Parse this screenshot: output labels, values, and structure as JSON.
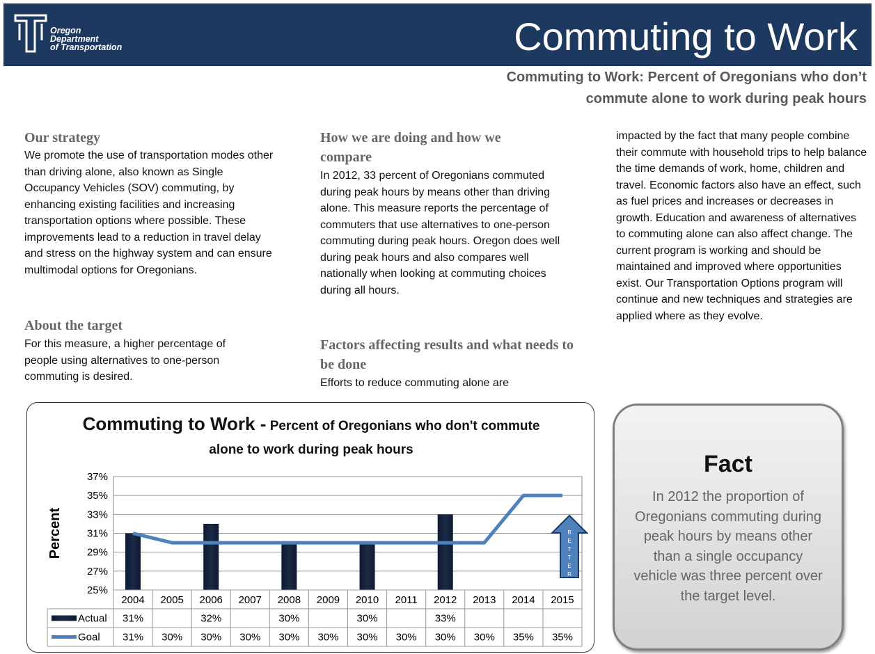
{
  "header": {
    "logo_lines": [
      "Oregon",
      "Department",
      "of Transportation"
    ],
    "title": "Commuting to Work",
    "subtitle": "Commuting to Work: Percent of Oregonians who don’t commute alone to work during peak hours"
  },
  "strategy": {
    "heading": "Our strategy",
    "text": "We promote the use of transportation modes other than driving alone, also known as Single Occupancy Vehicles (SOV) commuting, by enhancing existing facilities and increasing transportation options where possible. These improvements lead to a reduction in travel delay and stress on the highway system and can ensure multimodal options for Oregonians."
  },
  "target": {
    "heading": "About the target",
    "text": "For this measure, a higher percentage of people using alternatives to one-person commuting is desired."
  },
  "doing": {
    "heading": "How we are doing and how we compare",
    "text": "In 2012, 33 percent of Oregonians commuted during peak hours by means other than driving alone. This measure reports the percentage of commuters that use alternatives to one-person commuting during peak hours. Oregon does well during peak hours and also compares well nationally when looking at commuting choices during all hours."
  },
  "factors": {
    "heading": "Factors affecting results and what needs to be done",
    "text": [
      "Efforts to reduce commuting alone are",
      "impacted by the fact that many people combine their commute with household trips to help balance the time demands of work, home, children and travel. Economic factors also have an effect, such as fuel prices and increases or decreases in growth. Education and awareness of alternatives to commuting alone can also affect change. The current program is working and should be maintained and improved where opportunities exist. Our Transportation Options program will continue and new techniques and strategies are applied where as they evolve."
    ]
  },
  "chart_data": {
    "type": "bar",
    "title": "Commuting to Work -",
    "subtitle": "Percent of Oregonians who don't commute alone to work during peak hours",
    "y_label": "Percent",
    "annotation": "BETTER",
    "categories": [
      "2004",
      "2005",
      "2006",
      "2007",
      "2008",
      "2009",
      "2010",
      "2011",
      "2012",
      "2013",
      "2014",
      "2015"
    ],
    "series": [
      {
        "name": "Actual",
        "type": "bar",
        "color": "#1b2a47",
        "values": [
          31,
          null,
          32,
          null,
          30,
          null,
          30,
          null,
          33,
          null,
          null,
          null
        ],
        "value_labels": [
          "31%",
          null,
          "32%",
          null,
          "30%",
          null,
          "30%",
          null,
          "33%",
          null,
          null,
          null
        ]
      },
      {
        "name": "Goal",
        "type": "line",
        "color": "#4f81bd",
        "values": [
          31,
          30,
          30,
          30,
          30,
          30,
          30,
          30,
          30,
          30,
          35,
          35
        ],
        "value_labels": [
          "31%",
          "30%",
          "30%",
          "30%",
          "30%",
          "30%",
          "30%",
          "30%",
          "30%",
          "30%",
          "35%",
          "35%"
        ]
      }
    ],
    "ylim": [
      25,
      37
    ],
    "yticks": [
      {
        "value": 25,
        "label": "25%"
      },
      {
        "value": 27,
        "label": "27%"
      },
      {
        "value": 29,
        "label": "29%"
      },
      {
        "value": 31,
        "label": "31%"
      },
      {
        "value": 33,
        "label": "33%"
      },
      {
        "value": 35,
        "label": "35%"
      },
      {
        "value": 37,
        "label": "37%"
      }
    ],
    "grid": true
  },
  "fact": {
    "heading": "Fact",
    "text": "In 2012 the proportion of Oregonians commuting during peak hours by means other than a single occupancy vehicle was three percent over the target level."
  }
}
